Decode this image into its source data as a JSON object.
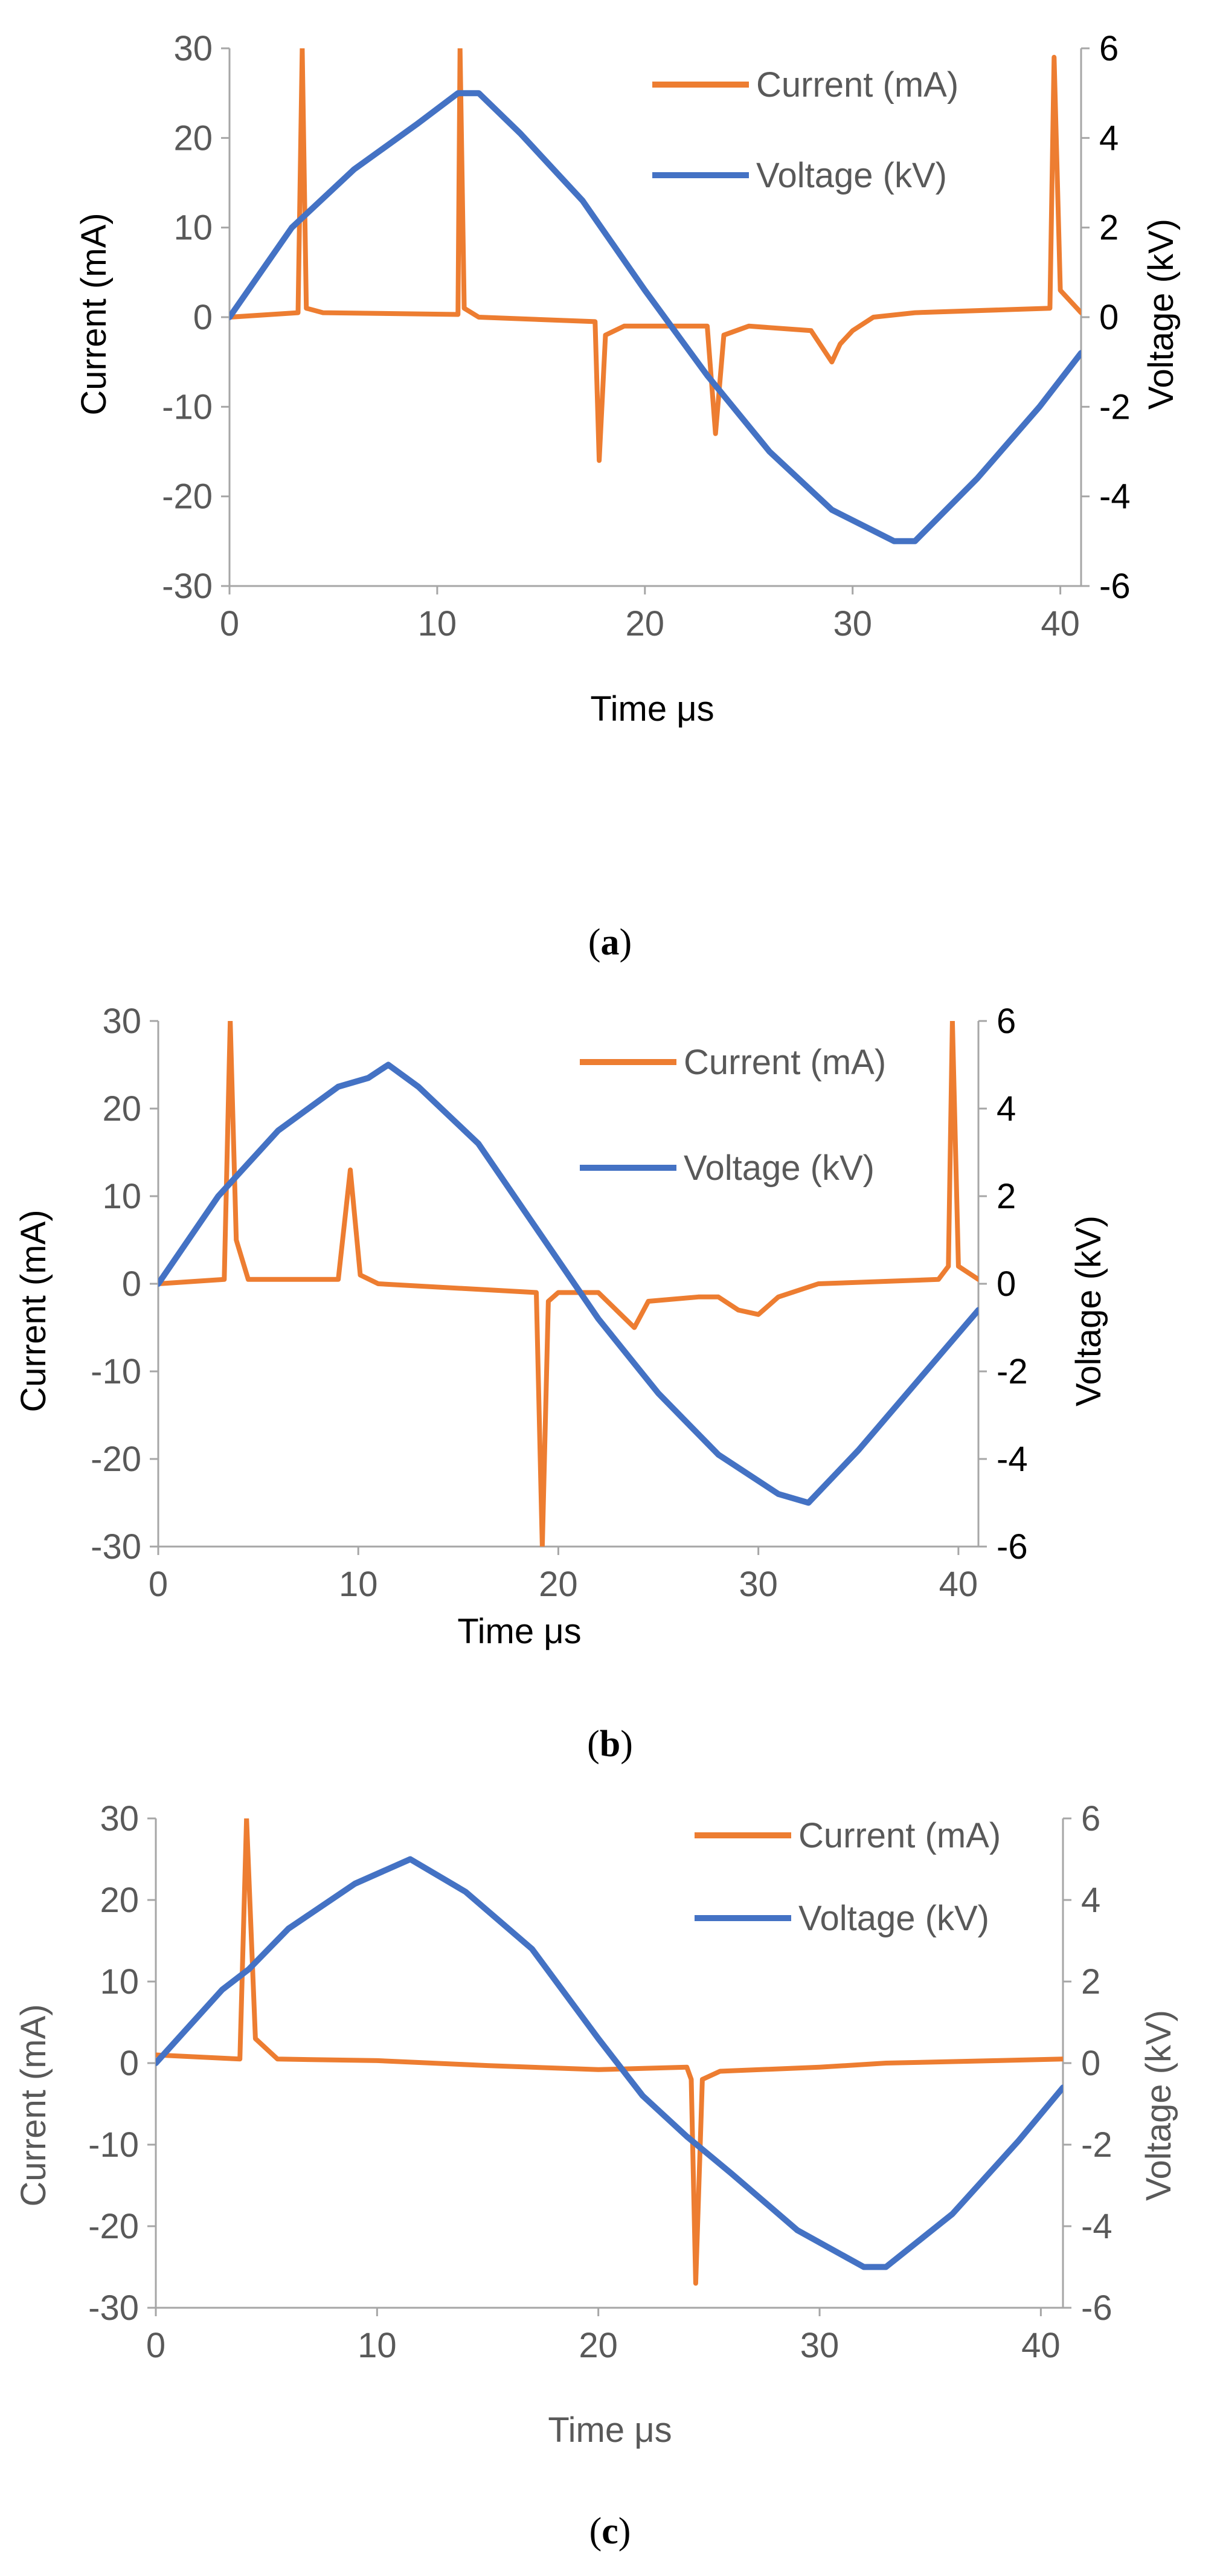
{
  "figure": {
    "captions": [
      "(a)",
      "(b)",
      "(c)"
    ],
    "caption_letters": [
      "a",
      "b",
      "c"
    ]
  },
  "colors": {
    "current": "#ED7D31",
    "voltage": "#4472C4",
    "axis": "#A6A6A6",
    "text": "#595959"
  },
  "chart_data": [
    {
      "type": "line",
      "panel": "a",
      "xlabel": "Time μs",
      "ylabel": "Current (mA)",
      "y2label": "Voltage (kV)",
      "xlim": [
        0,
        41
      ],
      "ylim": [
        -30,
        30
      ],
      "y2lim": [
        -6,
        6
      ],
      "xticks": [
        0,
        10,
        20,
        30,
        40
      ],
      "yticks": [
        -30,
        -20,
        -10,
        0,
        10,
        20,
        30
      ],
      "y2ticks": [
        -6,
        -4,
        -2,
        0,
        2,
        4,
        6
      ],
      "legend": [
        "Current (mA)",
        "Voltage (kV)"
      ],
      "legend_position": "top-right",
      "series": [
        {
          "name": "Current (mA)",
          "axis": "left",
          "points": [
            [
              0,
              0
            ],
            [
              3.3,
              0.5
            ],
            [
              3.5,
              30
            ],
            [
              3.7,
              1
            ],
            [
              4.5,
              0.5
            ],
            [
              11,
              0.3
            ],
            [
              11.1,
              30
            ],
            [
              11.3,
              1
            ],
            [
              12,
              0
            ],
            [
              17.6,
              -0.5
            ],
            [
              17.8,
              -16
            ],
            [
              18.1,
              -2
            ],
            [
              19,
              -1
            ],
            [
              22,
              -1
            ],
            [
              23,
              -1
            ],
            [
              23.4,
              -13
            ],
            [
              23.8,
              -2
            ],
            [
              25,
              -1
            ],
            [
              28,
              -1.5
            ],
            [
              29,
              -5
            ],
            [
              29.4,
              -3
            ],
            [
              30,
              -1.5
            ],
            [
              31,
              0
            ],
            [
              33,
              0.5
            ],
            [
              39.5,
              1
            ],
            [
              39.7,
              29
            ],
            [
              40,
              3
            ],
            [
              41,
              0.5
            ]
          ]
        },
        {
          "name": "Voltage (kV)",
          "axis": "right",
          "points": [
            [
              0,
              0
            ],
            [
              3,
              2
            ],
            [
              6,
              3.3
            ],
            [
              9,
              4.3
            ],
            [
              11,
              5
            ],
            [
              12,
              5
            ],
            [
              14,
              4.1
            ],
            [
              17,
              2.6
            ],
            [
              20,
              0.6
            ],
            [
              23,
              -1.3
            ],
            [
              26,
              -3
            ],
            [
              29,
              -4.3
            ],
            [
              32,
              -5
            ],
            [
              33,
              -5
            ],
            [
              36,
              -3.6
            ],
            [
              39,
              -2
            ],
            [
              41,
              -0.8
            ]
          ]
        }
      ]
    },
    {
      "type": "line",
      "panel": "b",
      "xlabel": "Time μs",
      "ylabel": "Current (mA)",
      "y2label": "Voltage (kV)",
      "xlim": [
        0,
        41
      ],
      "ylim": [
        -30,
        30
      ],
      "y2lim": [
        -6,
        6
      ],
      "xticks": [
        0,
        10,
        20,
        30,
        40
      ],
      "yticks": [
        -30,
        -20,
        -10,
        0,
        10,
        20,
        30
      ],
      "y2ticks": [
        -6,
        -4,
        -2,
        0,
        2,
        4,
        6
      ],
      "legend": [
        "Current (mA)",
        "Voltage (kV)"
      ],
      "legend_position": "top-right",
      "series": [
        {
          "name": "Current (mA)",
          "axis": "left",
          "points": [
            [
              0,
              0
            ],
            [
              3.3,
              0.5
            ],
            [
              3.6,
              30
            ],
            [
              3.9,
              5
            ],
            [
              4.5,
              0.5
            ],
            [
              9,
              0.5
            ],
            [
              9.6,
              13
            ],
            [
              10.1,
              1
            ],
            [
              11,
              0
            ],
            [
              18.9,
              -1
            ],
            [
              19.2,
              -30
            ],
            [
              19.5,
              -2
            ],
            [
              20,
              -1
            ],
            [
              22,
              -1
            ],
            [
              23.8,
              -5
            ],
            [
              24.5,
              -2
            ],
            [
              27,
              -1.5
            ],
            [
              28,
              -1.5
            ],
            [
              29,
              -3
            ],
            [
              30,
              -3.5
            ],
            [
              31,
              -1.5
            ],
            [
              33,
              0
            ],
            [
              39,
              0.5
            ],
            [
              39.5,
              2
            ],
            [
              39.7,
              30
            ],
            [
              40,
              2
            ],
            [
              41,
              0.5
            ]
          ]
        },
        {
          "name": "Voltage (kV)",
          "axis": "right",
          "points": [
            [
              0,
              0
            ],
            [
              3,
              2
            ],
            [
              6,
              3.5
            ],
            [
              9,
              4.5
            ],
            [
              10.5,
              4.7
            ],
            [
              11.5,
              5
            ],
            [
              13,
              4.5
            ],
            [
              16,
              3.2
            ],
            [
              19,
              1.2
            ],
            [
              22,
              -0.8
            ],
            [
              25,
              -2.5
            ],
            [
              28,
              -3.9
            ],
            [
              31,
              -4.8
            ],
            [
              32.5,
              -5
            ],
            [
              35,
              -3.8
            ],
            [
              38,
              -2.2
            ],
            [
              41,
              -0.6
            ]
          ]
        }
      ]
    },
    {
      "type": "line",
      "panel": "c",
      "xlabel": "Time μs",
      "ylabel": "Current (mA)",
      "y2label": "Voltage (kV)",
      "xlim": [
        0,
        41
      ],
      "ylim": [
        -30,
        30
      ],
      "y2lim": [
        -6,
        6
      ],
      "xticks": [
        0,
        10,
        20,
        30,
        40
      ],
      "yticks": [
        -30,
        -20,
        -10,
        0,
        10,
        20,
        30
      ],
      "y2ticks": [
        -6,
        -4,
        -2,
        0,
        2,
        4,
        6
      ],
      "legend": [
        "Current (mA)",
        "Voltage (kV)"
      ],
      "legend_position": "top-right",
      "series": [
        {
          "name": "Current (mA)",
          "axis": "left",
          "points": [
            [
              0,
              1
            ],
            [
              3.8,
              0.5
            ],
            [
              4.1,
              30
            ],
            [
              4.5,
              3
            ],
            [
              5.5,
              0.5
            ],
            [
              10,
              0.3
            ],
            [
              15,
              -0.3
            ],
            [
              20,
              -0.8
            ],
            [
              24,
              -0.5
            ],
            [
              24.2,
              -2
            ],
            [
              24.4,
              -27
            ],
            [
              24.7,
              -2
            ],
            [
              25.5,
              -1
            ],
            [
              30,
              -0.5
            ],
            [
              33,
              0
            ],
            [
              38,
              0.3
            ],
            [
              41,
              0.5
            ]
          ]
        },
        {
          "name": "Voltage (kV)",
          "axis": "right",
          "points": [
            [
              0,
              0
            ],
            [
              3,
              1.8
            ],
            [
              4.2,
              2.3
            ],
            [
              6,
              3.3
            ],
            [
              9,
              4.4
            ],
            [
              11.5,
              5
            ],
            [
              14,
              4.2
            ],
            [
              17,
              2.8
            ],
            [
              20,
              0.6
            ],
            [
              22,
              -0.8
            ],
            [
              24,
              -1.8
            ],
            [
              26,
              -2.7
            ],
            [
              29,
              -4.1
            ],
            [
              32,
              -5
            ],
            [
              33,
              -5
            ],
            [
              36,
              -3.7
            ],
            [
              39,
              -1.9
            ],
            [
              41,
              -0.6
            ]
          ]
        }
      ]
    }
  ]
}
